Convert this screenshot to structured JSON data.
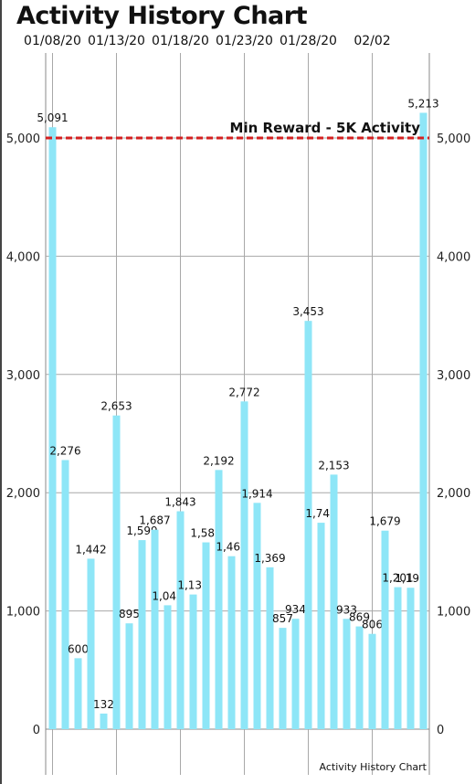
{
  "chart_data": {
    "type": "bar",
    "title": "Activity History Chart",
    "footer_label": "Activity History Chart",
    "x_tick_labels": [
      "01/08/20",
      "01/13/20",
      "01/18/20",
      "01/23/20",
      "01/28/20",
      "02/02"
    ],
    "y_tick_labels": [
      "0",
      "1,000",
      "2,000",
      "3,000",
      "4,000",
      "5,000"
    ],
    "y_ticks": [
      0,
      1000,
      2000,
      3000,
      4000,
      5000
    ],
    "ylim": [
      0,
      5213
    ],
    "bar_color": "#8EE6F7",
    "values": [
      5091,
      2276,
      600,
      1442,
      132,
      2653,
      895,
      1599,
      1687,
      1048,
      1843,
      1139,
      1580,
      2192,
      1463,
      2772,
      1914,
      1369,
      857,
      934,
      3453,
      1746,
      2153,
      933,
      869,
      806,
      1679,
      1201,
      1196,
      5213
    ],
    "value_labels": [
      "5,091",
      "2,276",
      "600",
      "1,442",
      "132",
      "2,653",
      "895",
      "1,599",
      "1,687",
      "1,048",
      "1,843",
      "1,139",
      "1,580",
      "2,192",
      "1,463",
      "2,772",
      "1,914",
      "1,369",
      "857",
      "934",
      "3,453",
      "1,746",
      "2,153",
      "933",
      "869",
      "806",
      "1,679",
      "1,201",
      "1,196",
      "5,213"
    ],
    "reference_line": {
      "value": 5000,
      "label": "Min Reward - 5K Activity",
      "color": "#D42020"
    },
    "grid": true
  }
}
